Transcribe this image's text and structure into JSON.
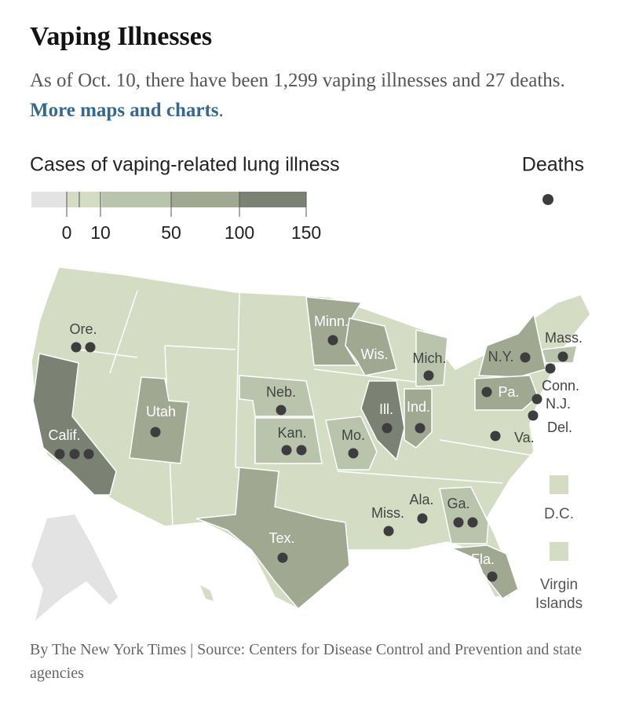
{
  "header": {
    "title": "Vaping Illnesses",
    "subtitle": "As of Oct. 10, there have been 1,299 vaping illnesses and 27 deaths.",
    "link": "More maps and charts",
    "subtitle_end": "."
  },
  "legend": {
    "title": "Cases of vaping-related lung illness",
    "ticks": [
      0,
      10,
      50,
      100,
      150
    ],
    "colors": [
      "#e3e3e3",
      "#d4ddc4",
      "#bac3ab",
      "#a0a891",
      "#7b8273"
    ],
    "deaths_title": "Deaths",
    "dot_color": "#3d3d3d"
  },
  "map": {
    "base_color": "#d4ddc4",
    "no_data_color": "#e3e3e3",
    "states": [
      {
        "label": "Ore.",
        "deaths": 2,
        "color": "#d4ddc4"
      },
      {
        "label": "Calif.",
        "deaths": 3,
        "color": "#7b8273"
      },
      {
        "label": "Utah",
        "deaths": 1,
        "color": "#a0a891"
      },
      {
        "label": "Neb.",
        "deaths": 1,
        "color": "#bac3ab"
      },
      {
        "label": "Kan.",
        "deaths": 2,
        "color": "#bac3ab"
      },
      {
        "label": "Minn.",
        "deaths": 1,
        "color": "#a0a891"
      },
      {
        "label": "Wis.",
        "deaths": 0,
        "color": "#a0a891"
      },
      {
        "label": "Ill.",
        "deaths": 1,
        "color": "#7b8273"
      },
      {
        "label": "Ind.",
        "deaths": 1,
        "color": "#a0a891"
      },
      {
        "label": "Mich.",
        "deaths": 1,
        "color": "#bac3ab"
      },
      {
        "label": "Mo.",
        "deaths": 1,
        "color": "#bac3ab"
      },
      {
        "label": "Tex.",
        "deaths": 1,
        "color": "#a0a891"
      },
      {
        "label": "Miss.",
        "deaths": 1,
        "color": "#d4ddc4"
      },
      {
        "label": "Ala.",
        "deaths": 1,
        "color": "#d4ddc4"
      },
      {
        "label": "Ga.",
        "deaths": 2,
        "color": "#bac3ab"
      },
      {
        "label": "Fla.",
        "deaths": 1,
        "color": "#a0a891"
      },
      {
        "label": "Va.",
        "deaths": 1,
        "color": "#d4ddc4"
      },
      {
        "label": "N.Y.",
        "deaths": 1,
        "color": "#a0a891"
      },
      {
        "label": "Mass.",
        "deaths": 1,
        "color": "#bac3ab"
      },
      {
        "label": "Conn.",
        "deaths": 1,
        "color": "#bac3ab"
      },
      {
        "label": "N.J.",
        "deaths": 1,
        "color": "#bac3ab"
      },
      {
        "label": "Del.",
        "deaths": 1,
        "color": "#d4ddc4"
      },
      {
        "label": "Pa.",
        "deaths": 1,
        "color": "#a0a891"
      }
    ],
    "extras": [
      {
        "label": "D.C.",
        "color": "#d4ddc4"
      },
      {
        "label": "Virgin Islands",
        "color": "#d4ddc4"
      }
    ]
  },
  "footer": "By The New York Times | Source: Centers for Disease Control and Prevention and state agencies"
}
